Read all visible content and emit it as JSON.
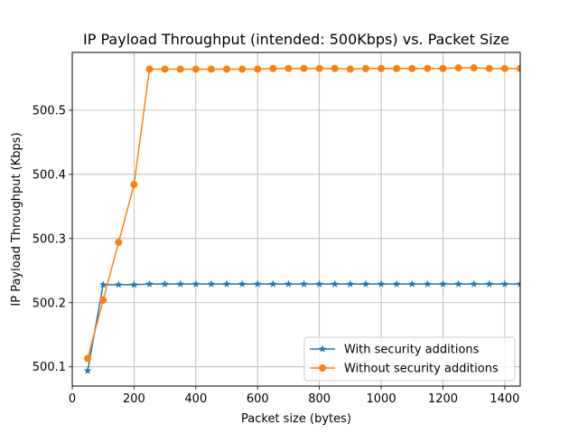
{
  "chart_data": {
    "type": "line",
    "title": "IP Payload Throughput (intended: 500Kbps) vs. Packet Size",
    "xlabel": "Packet size (bytes)",
    "ylabel": "IP Payload Throughput (Kbps)",
    "xlim": [
      0,
      1450
    ],
    "ylim": [
      500.07,
      500.59
    ],
    "xticks": [
      0,
      200,
      400,
      600,
      800,
      1000,
      1200,
      1400
    ],
    "yticks": [
      500.1,
      500.2,
      500.3,
      500.4,
      500.5
    ],
    "xtick_labels": [
      "0",
      "200",
      "400",
      "600",
      "800",
      "1000",
      "1200",
      "1400"
    ],
    "ytick_labels": [
      "500.1",
      "500.2",
      "500.3",
      "500.4",
      "500.5"
    ],
    "grid": true,
    "legend_position": "lower-right",
    "x": [
      50,
      100,
      150,
      200,
      250,
      300,
      350,
      400,
      450,
      500,
      550,
      600,
      650,
      700,
      750,
      800,
      850,
      900,
      950,
      1000,
      1050,
      1100,
      1150,
      1200,
      1250,
      1300,
      1350,
      1400,
      1450
    ],
    "series": [
      {
        "name": "With security additions",
        "color": "#1f77b4",
        "marker": "star",
        "values": [
          500.094,
          500.228,
          500.228,
          500.228,
          500.229,
          500.229,
          500.229,
          500.229,
          500.229,
          500.229,
          500.229,
          500.229,
          500.229,
          500.229,
          500.229,
          500.229,
          500.229,
          500.229,
          500.229,
          500.229,
          500.229,
          500.229,
          500.229,
          500.229,
          500.229,
          500.229,
          500.229,
          500.229,
          500.229
        ]
      },
      {
        "name": "Without security additions",
        "color": "#ff7f0e",
        "marker": "circle",
        "values": [
          500.113,
          500.204,
          500.294,
          500.384,
          500.564,
          500.564,
          500.564,
          500.564,
          500.564,
          500.564,
          500.564,
          500.564,
          500.565,
          500.565,
          500.565,
          500.565,
          500.565,
          500.564,
          500.565,
          500.565,
          500.565,
          500.565,
          500.565,
          500.565,
          500.566,
          500.566,
          500.565,
          500.565,
          500.565
        ]
      }
    ]
  }
}
